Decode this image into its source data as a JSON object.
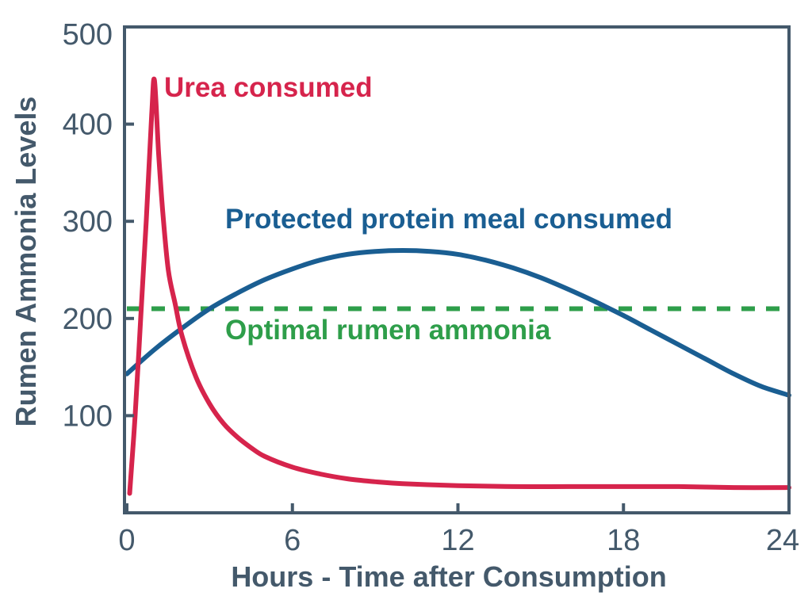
{
  "chart_data": {
    "type": "line",
    "title": "",
    "xlabel": "Hours - Time after Consumption",
    "ylabel": "Rumen Ammonia Levels",
    "xlim": [
      0,
      24
    ],
    "ylim": [
      0,
      500
    ],
    "x_ticks": [
      0,
      6,
      12,
      18,
      24
    ],
    "y_ticks": [
      100,
      200,
      300,
      400,
      500
    ],
    "grid": false,
    "legend": "inline labels",
    "series": [
      {
        "name": "Urea consumed",
        "color": "#d6244c",
        "x": [
          0.1,
          0.3,
          0.5,
          0.7,
          0.9,
          1.0,
          1.15,
          1.3,
          1.5,
          1.75,
          2,
          2.5,
          3,
          3.5,
          4,
          4.5,
          5,
          6,
          7,
          8,
          9,
          10,
          12,
          14,
          16,
          18,
          20,
          22,
          24
        ],
        "values": [
          20,
          100,
          200,
          300,
          410,
          445,
          370,
          310,
          250,
          215,
          182,
          140,
          112,
          92,
          78,
          67,
          58,
          47,
          40,
          35,
          32,
          30,
          28,
          27,
          27,
          27,
          27,
          26,
          26
        ]
      },
      {
        "name": "Protected protein meal consumed",
        "color": "#1a5e92",
        "x": [
          0,
          1,
          2,
          3,
          4,
          5,
          6,
          7,
          8,
          9,
          10,
          11,
          12,
          13,
          14,
          15,
          16,
          17,
          18,
          19,
          20,
          21,
          22,
          23,
          24
        ],
        "values": [
          143,
          168,
          190,
          210,
          226,
          240,
          251,
          260,
          266,
          269,
          270,
          269,
          266,
          260,
          252,
          242,
          230,
          217,
          203,
          188,
          173,
          158,
          143,
          130,
          121
        ]
      },
      {
        "name": "Optimal rumen ammonia",
        "color": "#2e9e4a",
        "style": "dashed",
        "x": [
          0,
          24
        ],
        "values": [
          210,
          210
        ]
      }
    ]
  }
}
